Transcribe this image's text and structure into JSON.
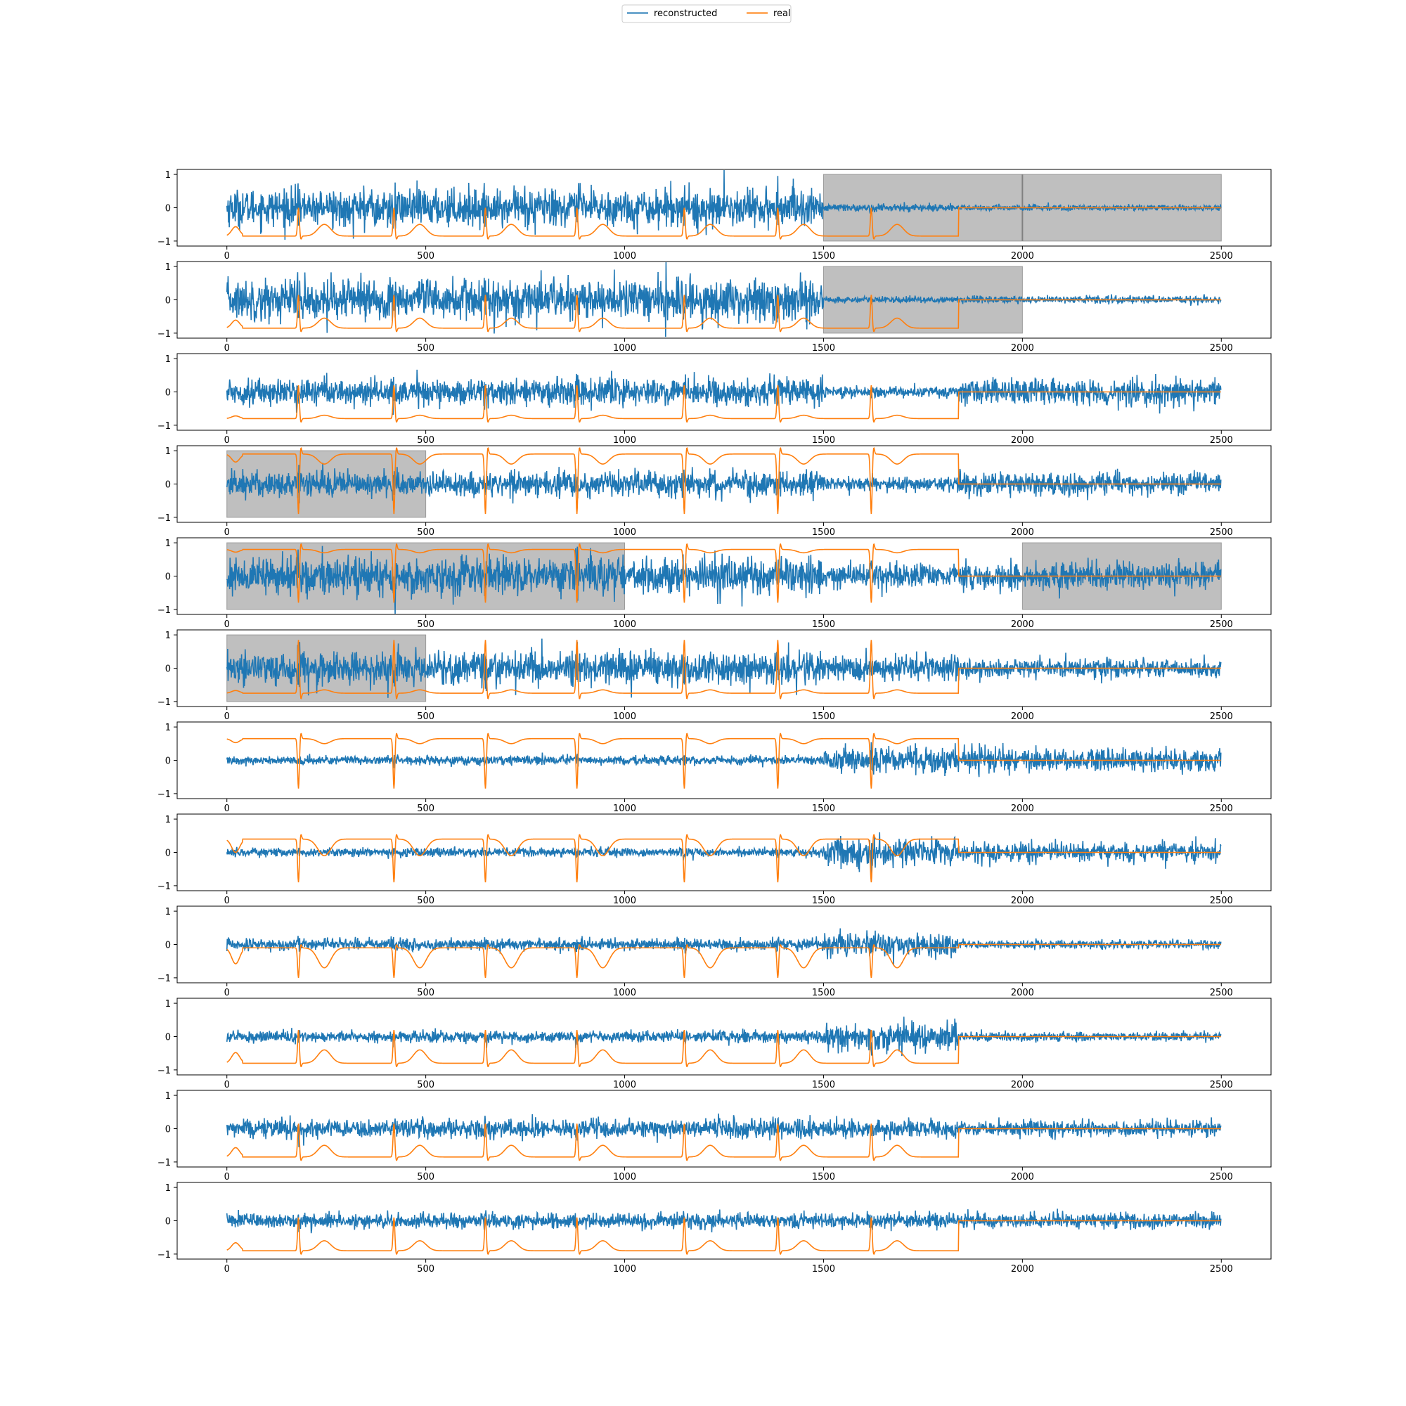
{
  "colors": {
    "reconstructed": "#1f77b4",
    "real": "#ff7f0e",
    "masked_region": "#bfbfbf",
    "axes": "#000000",
    "background": "#ffffff"
  },
  "legend": {
    "placement": "top-center",
    "entries": [
      {
        "label": "reconstructed",
        "color": "#1f77b4"
      },
      {
        "label": "real",
        "color": "#ff7f0e"
      }
    ]
  },
  "chart_data": {
    "type": "line",
    "layout": "12 stacked subplots sharing x-axis range",
    "xlim": [
      -125,
      2625
    ],
    "ylim": [
      -1.15,
      1.15
    ],
    "xticks": [
      0,
      500,
      1000,
      1500,
      2000,
      2500
    ],
    "yticks": [
      -1,
      0,
      1
    ],
    "signal_length": 2500,
    "padding_start": 1840,
    "beat_positions": [
      180,
      420,
      650,
      880,
      1150,
      1385,
      1620
    ],
    "series": [
      {
        "name": "reconstructed",
        "color": "#1f77b4"
      },
      {
        "name": "real",
        "color": "#ff7f0e"
      }
    ],
    "subplots": [
      {
        "lead": 1,
        "real_baseline": -0.85,
        "real_polarity": 1,
        "spike": 0.85,
        "t_wave": 0.35,
        "recon_amp": [
          0.5,
          0.1,
          0.08
        ],
        "masked": [
          [
            1500,
            2500
          ]
        ],
        "mask_divider": 2000
      },
      {
        "lead": 2,
        "real_baseline": -0.85,
        "real_polarity": 1,
        "spike": 1.0,
        "t_wave": 0.3,
        "recon_amp": [
          0.55,
          0.08,
          0.1
        ],
        "masked": [
          [
            1500,
            2000
          ]
        ]
      },
      {
        "lead": 3,
        "real_baseline": -0.8,
        "real_polarity": 1,
        "spike": 1.0,
        "t_wave": 0.1,
        "recon_amp": [
          0.35,
          0.15,
          0.35
        ],
        "masked": []
      },
      {
        "lead": 4,
        "real_baseline": 0.9,
        "real_polarity": -1,
        "spike": 1.8,
        "t_wave": 0.3,
        "recon_amp": [
          0.35,
          0.2,
          0.3
        ],
        "masked": [
          [
            0,
            500
          ]
        ]
      },
      {
        "lead": 5,
        "real_baseline": 0.8,
        "real_polarity": -1,
        "spike": 1.6,
        "t_wave": 0.1,
        "recon_amp": [
          0.5,
          0.35,
          0.35
        ],
        "masked": [
          [
            0,
            1000
          ],
          [
            2000,
            2500
          ]
        ]
      },
      {
        "lead": 6,
        "real_baseline": -0.75,
        "real_polarity": 1,
        "spike": 1.6,
        "t_wave": 0.1,
        "recon_amp": [
          0.45,
          0.35,
          0.25
        ],
        "masked": [
          [
            0,
            500
          ]
        ]
      },
      {
        "lead": 7,
        "real_baseline": 0.65,
        "real_polarity": -1,
        "spike": 1.5,
        "t_wave": 0.15,
        "recon_amp": [
          0.12,
          0.35,
          0.3
        ],
        "masked": []
      },
      {
        "lead": 8,
        "real_baseline": 0.4,
        "real_polarity": -1,
        "spike": 1.3,
        "t_wave": 0.5,
        "recon_amp": [
          0.12,
          0.35,
          0.25
        ],
        "masked": []
      },
      {
        "lead": 9,
        "real_baseline": -0.1,
        "real_polarity": -1,
        "spike": 0.9,
        "t_wave": 0.6,
        "recon_amp": [
          0.15,
          0.3,
          0.12
        ],
        "masked": []
      },
      {
        "lead": 10,
        "real_baseline": -0.8,
        "real_polarity": 1,
        "spike": 1.0,
        "t_wave": 0.4,
        "recon_amp": [
          0.15,
          0.35,
          0.12
        ],
        "masked": []
      },
      {
        "lead": 11,
        "real_baseline": -0.85,
        "real_polarity": 1,
        "spike": 1.0,
        "t_wave": 0.35,
        "recon_amp": [
          0.25,
          0.25,
          0.2
        ],
        "masked": []
      },
      {
        "lead": 12,
        "real_baseline": -0.9,
        "real_polarity": 1,
        "spike": 1.0,
        "t_wave": 0.3,
        "recon_amp": [
          0.2,
          0.2,
          0.2
        ],
        "masked": []
      }
    ]
  }
}
